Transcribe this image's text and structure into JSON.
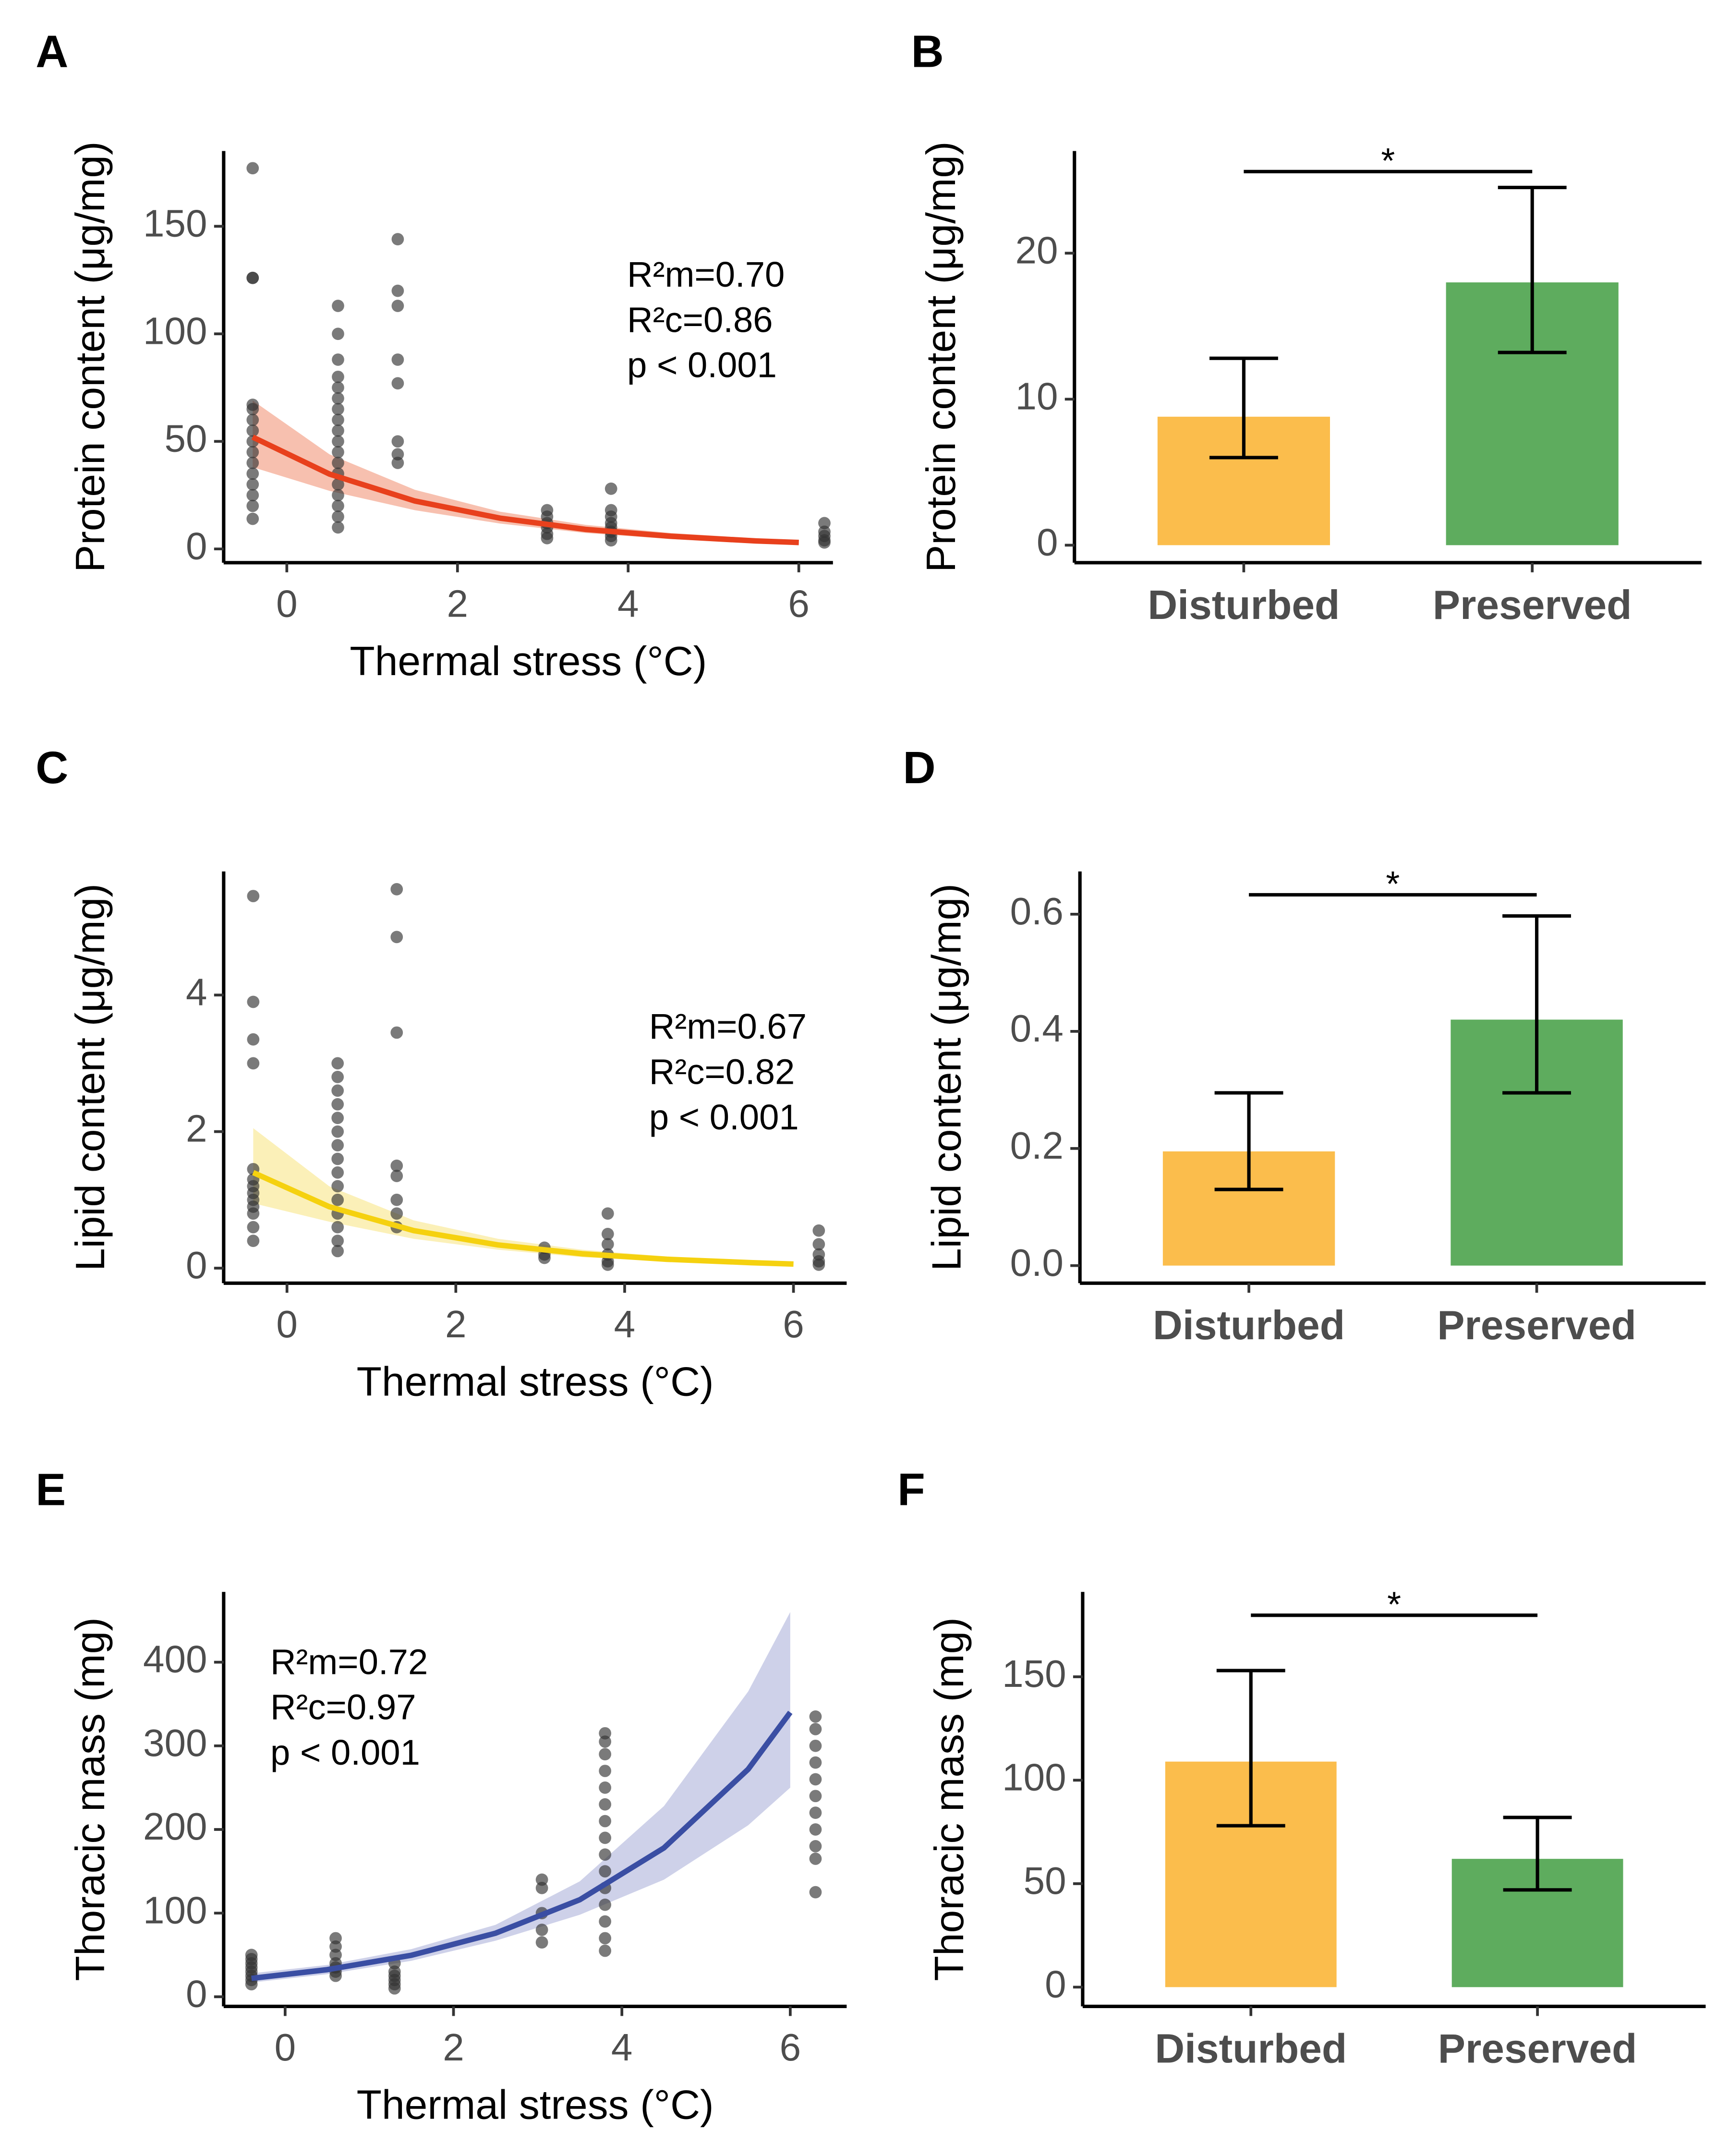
{
  "chart_data": [
    {
      "type": "scatter",
      "panel": "A",
      "xlabel": "Thermal stress (°C)",
      "ylabel": "Protein content (μg/mg)",
      "annotation": [
        "R²m=0.70",
        "R²c=0.86",
        "p < 0.001"
      ],
      "xlim": [
        -0.74,
        6.4
      ],
      "xticks": [
        0,
        2,
        4,
        6
      ],
      "ylim": [
        -6.4,
        185
      ],
      "yticks": [
        0,
        50,
        100,
        150
      ],
      "points": {
        "color": "#333333",
        "x": [
          -0.4,
          -0.4,
          -0.4,
          -0.4,
          -0.4,
          -0.4,
          -0.4,
          -0.4,
          -0.4,
          -0.4,
          -0.4,
          -0.4,
          -0.4,
          -0.4,
          -0.4,
          0.6,
          0.6,
          0.6,
          0.6,
          0.6,
          0.6,
          0.6,
          0.6,
          0.6,
          0.6,
          0.6,
          0.6,
          0.6,
          0.6,
          0.6,
          0.6,
          0.6,
          0.6,
          1.3,
          1.3,
          1.3,
          1.3,
          1.3,
          1.3,
          1.3,
          1.3,
          3.05,
          3.05,
          3.05,
          3.05,
          3.05,
          3.05,
          3.8,
          3.8,
          3.8,
          3.8,
          3.8,
          3.8,
          3.8,
          3.8,
          6.3,
          6.3,
          6.3,
          6.3,
          6.3
        ],
        "values": [
          177,
          126,
          126,
          67,
          65,
          60,
          55,
          50,
          45,
          40,
          35,
          30,
          25,
          20,
          14,
          113,
          100,
          88,
          80,
          75,
          70,
          65,
          60,
          55,
          50,
          45,
          40,
          35,
          30,
          25,
          20,
          15,
          10,
          144,
          120,
          113,
          88,
          77,
          50,
          44,
          40,
          18,
          15,
          12,
          10,
          7,
          5,
          28,
          18,
          15,
          12,
          10,
          8,
          6,
          4,
          12,
          8,
          6,
          4,
          3
        ]
      },
      "fit": {
        "color": "#e8401c",
        "band_color": "#f4a58d",
        "x": [
          -0.4,
          0.5,
          1.5,
          2.5,
          3.5,
          4.5,
          5.5,
          6
        ],
        "values": [
          52,
          34.8,
          22.3,
          14.3,
          9.1,
          5.9,
          3.7,
          3.0
        ],
        "lower": [
          38,
          27,
          18,
          11.8,
          7.4,
          4.6,
          2.8,
          2.2
        ],
        "upper": [
          69,
          44,
          27.5,
          17.3,
          11.2,
          7.4,
          4.9,
          4.0
        ]
      }
    },
    {
      "type": "bar",
      "panel": "B",
      "ylabel": "Protein content (μg/mg)",
      "significance": "*",
      "categories": [
        "Disturbed",
        "Preserved"
      ],
      "values": [
        8.8,
        18.0
      ],
      "error_low": [
        6.0,
        13.2
      ],
      "error_high": [
        12.8,
        24.5
      ],
      "colors": [
        "#fbbd4c",
        "#5eac5e"
      ],
      "ylim": [
        -1.2,
        27
      ],
      "yticks": [
        0,
        10,
        20
      ]
    },
    {
      "type": "scatter",
      "panel": "C",
      "xlabel": "Thermal stress (°C)",
      "ylabel": "Lipid content (μg/mg)",
      "annotation": [
        "R²m=0.67",
        "R²c=0.82",
        "p < 0.001"
      ],
      "xlim": [
        -0.75,
        6.63
      ],
      "xticks": [
        0,
        2,
        4,
        6
      ],
      "ylim": [
        -0.22,
        5.81
      ],
      "yticks": [
        0,
        2,
        4
      ],
      "points": {
        "color": "#333333",
        "x": [
          -0.4,
          -0.4,
          -0.4,
          -0.4,
          -0.4,
          -0.4,
          -0.4,
          -0.4,
          -0.4,
          -0.4,
          -0.4,
          -0.4,
          -0.4,
          0.6,
          0.6,
          0.6,
          0.6,
          0.6,
          0.6,
          0.6,
          0.6,
          0.6,
          0.6,
          0.6,
          0.6,
          0.6,
          0.6,
          0.6,
          1.3,
          1.3,
          1.3,
          1.3,
          1.3,
          1.3,
          1.3,
          1.3,
          3.05,
          3.05,
          3.05,
          3.8,
          3.8,
          3.8,
          3.8,
          3.8,
          3.8,
          6.3,
          6.3,
          6.3,
          6.3,
          6.3
        ],
        "values": [
          5.45,
          3.9,
          3.35,
          3.0,
          1.45,
          1.3,
          1.2,
          1.1,
          1.0,
          0.9,
          0.8,
          0.6,
          0.4,
          3.0,
          2.8,
          2.6,
          2.4,
          2.2,
          2.0,
          1.8,
          1.6,
          1.4,
          1.2,
          1.0,
          0.8,
          0.6,
          0.4,
          0.25,
          5.55,
          4.85,
          3.45,
          1.5,
          1.35,
          1.0,
          0.8,
          0.6,
          0.3,
          0.2,
          0.15,
          0.8,
          0.5,
          0.35,
          0.2,
          0.1,
          0.05,
          0.55,
          0.35,
          0.2,
          0.1,
          0.05
        ]
      },
      "fit": {
        "color": "#f5d10f",
        "band_color": "#f9e99a",
        "x": [
          -0.4,
          0.5,
          1.5,
          2.5,
          3.5,
          4.5,
          5.5,
          6
        ],
        "values": [
          1.4,
          0.9,
          0.55,
          0.34,
          0.21,
          0.13,
          0.08,
          0.06
        ],
        "lower": [
          0.95,
          0.68,
          0.43,
          0.27,
          0.16,
          0.1,
          0.06,
          0.045
        ],
        "upper": [
          2.05,
          1.2,
          0.7,
          0.43,
          0.27,
          0.17,
          0.11,
          0.08
        ]
      }
    },
    {
      "type": "bar",
      "panel": "D",
      "ylabel": "Lipid content (μg/mg)",
      "significance": "*",
      "categories": [
        "Disturbed",
        "Preserved"
      ],
      "values": [
        0.195,
        0.42
      ],
      "error_low": [
        0.13,
        0.295
      ],
      "error_high": [
        0.295,
        0.597
      ],
      "colors": [
        "#fbbd4c",
        "#5eac5e"
      ],
      "ylim": [
        -0.03,
        0.673
      ],
      "yticks": [
        {
          "value": 0,
          "label": "0.0"
        },
        0.2,
        0.4,
        0.6
      ]
    },
    {
      "type": "scatter",
      "panel": "E",
      "xlabel": "Thermal stress (°C)",
      "ylabel": "Thoracic mass (mg)",
      "annotation": [
        "R²m=0.72",
        "R²c=0.97",
        "p < 0.001"
      ],
      "xlim": [
        -0.73,
        6.67
      ],
      "xticks": [
        0,
        2,
        4,
        6
      ],
      "ylim": [
        -11.5,
        484
      ],
      "yticks": [
        0,
        100,
        200,
        300,
        400
      ],
      "points": {
        "color": "#333333",
        "x": [
          -0.4,
          -0.4,
          -0.4,
          -0.4,
          -0.4,
          -0.4,
          -0.4,
          -0.4,
          0.6,
          0.6,
          0.6,
          0.6,
          0.6,
          0.6,
          0.6,
          1.3,
          1.3,
          1.3,
          1.3,
          1.3,
          1.3,
          3.05,
          3.05,
          3.05,
          3.05,
          3.05,
          3.8,
          3.8,
          3.8,
          3.8,
          3.8,
          3.8,
          3.8,
          3.8,
          3.8,
          3.8,
          3.8,
          3.8,
          3.8,
          3.8,
          3.8,
          6.3,
          6.3,
          6.3,
          6.3,
          6.3,
          6.3,
          6.3,
          6.3,
          6.3,
          6.3,
          6.3
        ],
        "values": [
          50,
          45,
          40,
          35,
          30,
          25,
          20,
          15,
          70,
          60,
          50,
          40,
          35,
          30,
          25,
          40,
          30,
          25,
          20,
          15,
          10,
          140,
          130,
          100,
          80,
          65,
          315,
          305,
          290,
          270,
          250,
          230,
          210,
          190,
          170,
          150,
          130,
          110,
          90,
          70,
          55,
          335,
          320,
          300,
          280,
          260,
          240,
          220,
          200,
          180,
          165,
          125
        ]
      },
      "fit": {
        "color": "#3a4ea3",
        "band_color": "#b9bde0",
        "x": [
          -0.4,
          0.5,
          1.5,
          2.5,
          3.5,
          4.5,
          5.5,
          6
        ],
        "values": [
          22,
          32.4,
          49.6,
          76,
          116,
          178,
          272,
          340
        ],
        "lower": [
          17,
          27,
          43,
          67,
          98,
          140,
          205,
          250
        ],
        "upper": [
          28,
          38,
          57,
          86,
          138,
          228,
          365,
          460
        ]
      }
    },
    {
      "type": "bar",
      "panel": "F",
      "ylabel": "Thoracic mass (mg)",
      "significance": "*",
      "categories": [
        "Disturbed",
        "Preserved"
      ],
      "values": [
        109,
        62
      ],
      "error_low": [
        78,
        47
      ],
      "error_high": [
        153,
        82
      ],
      "colors": [
        "#fbbd4c",
        "#5eac5e"
      ],
      "ylim": [
        -9.3,
        191
      ],
      "yticks": [
        0,
        50,
        100,
        150
      ]
    }
  ]
}
